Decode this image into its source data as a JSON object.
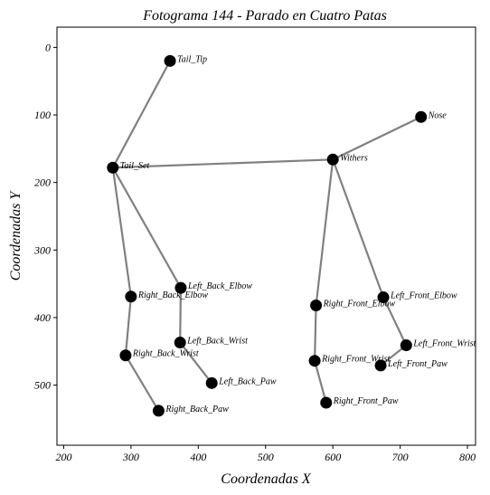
{
  "chart_data": {
    "type": "scatter",
    "title": "Fotograma 144 - Parado en Cuatro Patas",
    "xlabel": "Coordenadas X",
    "ylabel": "Coordenadas Y",
    "xlim": [
      190,
      812
    ],
    "ylim": [
      589,
      -30
    ],
    "y_inverted": true,
    "xticks": [
      200,
      300,
      400,
      500,
      600,
      700,
      800
    ],
    "yticks": [
      0,
      100,
      200,
      300,
      400,
      500
    ],
    "grid": false,
    "colors": {
      "edge": "#808080",
      "point": "#000000"
    },
    "keypoints": [
      {
        "name": "Tail_Tip",
        "x": 358,
        "y": 20
      },
      {
        "name": "Nose",
        "x": 731,
        "y": 103
      },
      {
        "name": "Withers",
        "x": 600,
        "y": 166
      },
      {
        "name": "Tail_Set",
        "x": 273,
        "y": 178
      },
      {
        "name": "Left_Back_Elbow",
        "x": 374,
        "y": 356
      },
      {
        "name": "Right_Back_Elbow",
        "x": 300,
        "y": 369
      },
      {
        "name": "Left_Front_Elbow",
        "x": 675,
        "y": 370
      },
      {
        "name": "Right_Front_Elbow",
        "x": 575,
        "y": 382
      },
      {
        "name": "Left_Back_Wrist",
        "x": 373,
        "y": 437
      },
      {
        "name": "Left_Front_Wrist",
        "x": 709,
        "y": 441
      },
      {
        "name": "Right_Back_Wrist",
        "x": 292,
        "y": 456
      },
      {
        "name": "Right_Front_Wrist",
        "x": 573,
        "y": 464
      },
      {
        "name": "Left_Front_Paw",
        "x": 671,
        "y": 471
      },
      {
        "name": "Left_Back_Paw",
        "x": 420,
        "y": 497
      },
      {
        "name": "Right_Front_Paw",
        "x": 590,
        "y": 526
      },
      {
        "name": "Right_Back_Paw",
        "x": 341,
        "y": 538
      }
    ],
    "edges": [
      [
        "Tail_Set",
        "Tail_Tip"
      ],
      [
        "Tail_Set",
        "Withers"
      ],
      [
        "Withers",
        "Nose"
      ],
      [
        "Tail_Set",
        "Left_Back_Elbow"
      ],
      [
        "Left_Back_Elbow",
        "Left_Back_Wrist"
      ],
      [
        "Left_Back_Wrist",
        "Left_Back_Paw"
      ],
      [
        "Tail_Set",
        "Right_Back_Elbow"
      ],
      [
        "Right_Back_Elbow",
        "Right_Back_Wrist"
      ],
      [
        "Right_Back_Wrist",
        "Right_Back_Paw"
      ],
      [
        "Withers",
        "Left_Front_Elbow"
      ],
      [
        "Left_Front_Elbow",
        "Left_Front_Wrist"
      ],
      [
        "Left_Front_Wrist",
        "Left_Front_Paw"
      ],
      [
        "Withers",
        "Right_Front_Elbow"
      ],
      [
        "Right_Front_Elbow",
        "Right_Front_Wrist"
      ],
      [
        "Right_Front_Wrist",
        "Right_Front_Paw"
      ]
    ]
  }
}
